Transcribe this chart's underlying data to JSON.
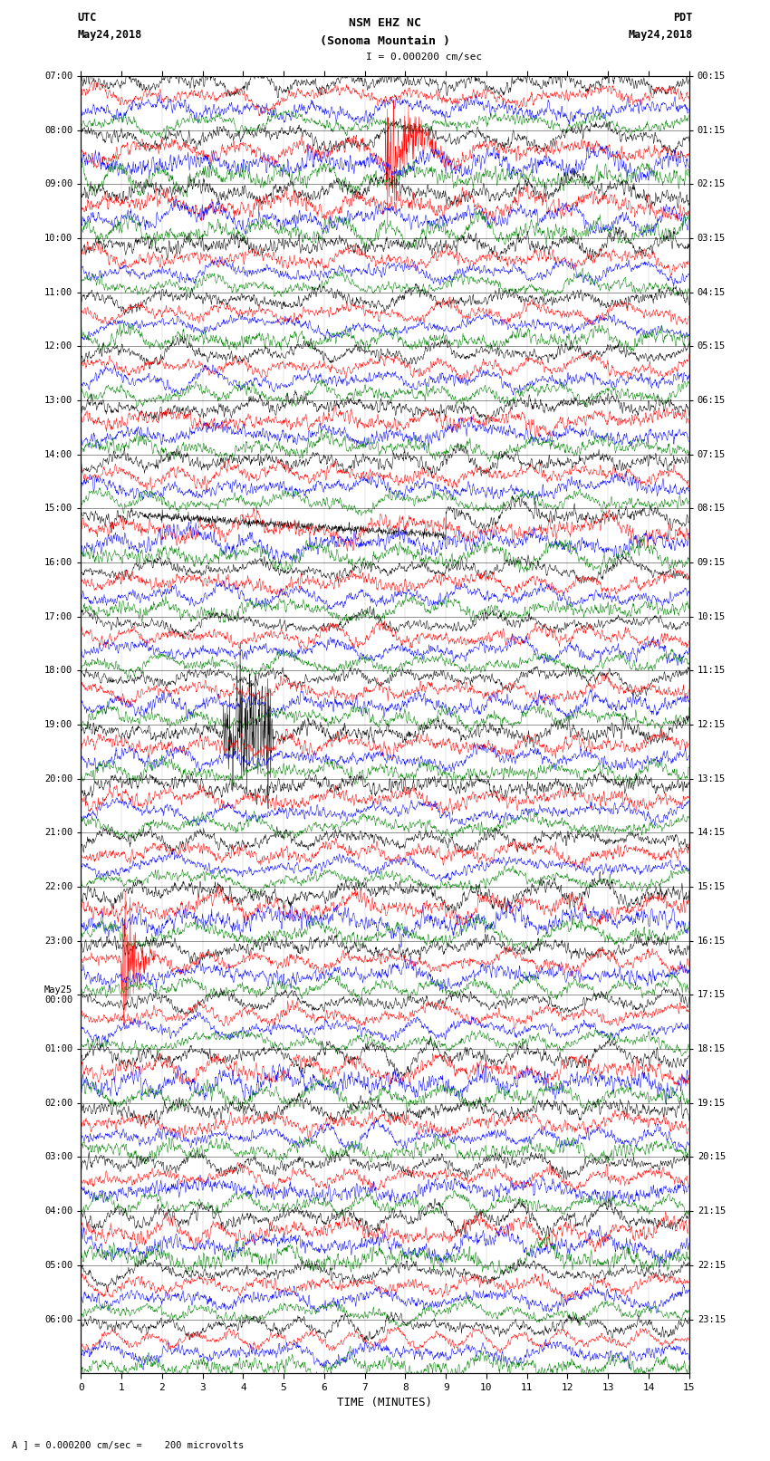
{
  "title_line1": "NSM EHZ NC",
  "title_line2": "(Sonoma Mountain )",
  "title_line3": "I = 0.000200 cm/sec",
  "label_left_top": "UTC",
  "label_left_date": "May24,2018",
  "label_right_top": "PDT",
  "label_right_date": "May24,2018",
  "xlabel": "TIME (MINUTES)",
  "footer": "A ] = 0.000200 cm/sec =    200 microvolts",
  "utc_hour_labels": [
    "07:00",
    "08:00",
    "09:00",
    "10:00",
    "11:00",
    "12:00",
    "13:00",
    "14:00",
    "15:00",
    "16:00",
    "17:00",
    "18:00",
    "19:00",
    "20:00",
    "21:00",
    "22:00",
    "23:00",
    "May25\n00:00",
    "01:00",
    "02:00",
    "03:00",
    "04:00",
    "05:00",
    "06:00"
  ],
  "pdt_hour_labels": [
    "00:15",
    "01:15",
    "02:15",
    "03:15",
    "04:15",
    "05:15",
    "06:15",
    "07:15",
    "08:15",
    "09:15",
    "10:15",
    "11:15",
    "12:15",
    "13:15",
    "14:15",
    "15:15",
    "16:15",
    "17:15",
    "18:15",
    "19:15",
    "20:15",
    "21:15",
    "22:15",
    "23:15"
  ],
  "n_hours": 24,
  "traces_per_hour": 4,
  "colors": [
    "black",
    "red",
    "blue",
    "green"
  ],
  "time_min": 0,
  "time_max": 15,
  "xticks": [
    0,
    1,
    2,
    3,
    4,
    5,
    6,
    7,
    8,
    9,
    10,
    11,
    12,
    13,
    14,
    15
  ],
  "bg_color": "white",
  "n_points": 1800
}
